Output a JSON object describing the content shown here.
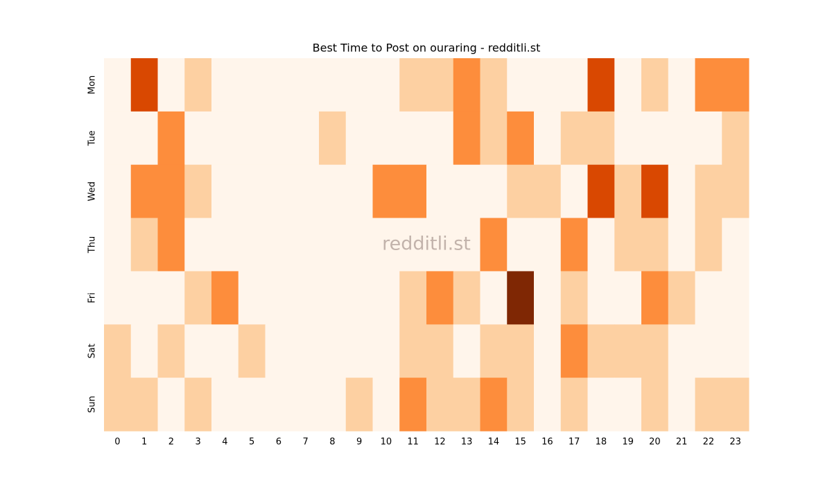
{
  "chart_data": {
    "type": "heatmap",
    "title": "Best Time to Post on ouraring - redditli.st",
    "watermark": "redditli.st",
    "x_categories": [
      0,
      1,
      2,
      3,
      4,
      5,
      6,
      7,
      8,
      9,
      10,
      11,
      12,
      13,
      14,
      15,
      16,
      17,
      18,
      19,
      20,
      21,
      22,
      23
    ],
    "y_categories": [
      "Mon",
      "Tue",
      "Wed",
      "Thu",
      "Fri",
      "Sat",
      "Sun"
    ],
    "values": [
      [
        0,
        3,
        0,
        1,
        0,
        0,
        0,
        0,
        0,
        0,
        0,
        1,
        1,
        2,
        1,
        0,
        0,
        0,
        3,
        0,
        1,
        0,
        2,
        2
      ],
      [
        0,
        0,
        2,
        0,
        0,
        0,
        0,
        0,
        1,
        0,
        0,
        0,
        0,
        2,
        1,
        2,
        0,
        1,
        1,
        0,
        0,
        0,
        0,
        1
      ],
      [
        0,
        2,
        2,
        1,
        0,
        0,
        0,
        0,
        0,
        0,
        2,
        2,
        0,
        0,
        0,
        1,
        1,
        0,
        3,
        1,
        3,
        0,
        1,
        1
      ],
      [
        0,
        1,
        2,
        0,
        0,
        0,
        0,
        0,
        0,
        0,
        0,
        0,
        0,
        0,
        2,
        0,
        0,
        2,
        0,
        1,
        1,
        0,
        1,
        0
      ],
      [
        0,
        0,
        0,
        1,
        2,
        0,
        0,
        0,
        0,
        0,
        0,
        1,
        2,
        1,
        0,
        4,
        0,
        1,
        0,
        0,
        2,
        1,
        0,
        0
      ],
      [
        1,
        0,
        1,
        0,
        0,
        1,
        0,
        0,
        0,
        0,
        0,
        1,
        1,
        0,
        1,
        1,
        0,
        2,
        1,
        1,
        1,
        0,
        0,
        0
      ],
      [
        1,
        1,
        0,
        1,
        0,
        0,
        0,
        0,
        0,
        1,
        0,
        2,
        1,
        1,
        2,
        1,
        0,
        1,
        0,
        0,
        1,
        0,
        1,
        1
      ]
    ],
    "colors": [
      "#fff5eb",
      "#fdd0a2",
      "#fd8d3c",
      "#d94801",
      "#7f2704"
    ]
  }
}
